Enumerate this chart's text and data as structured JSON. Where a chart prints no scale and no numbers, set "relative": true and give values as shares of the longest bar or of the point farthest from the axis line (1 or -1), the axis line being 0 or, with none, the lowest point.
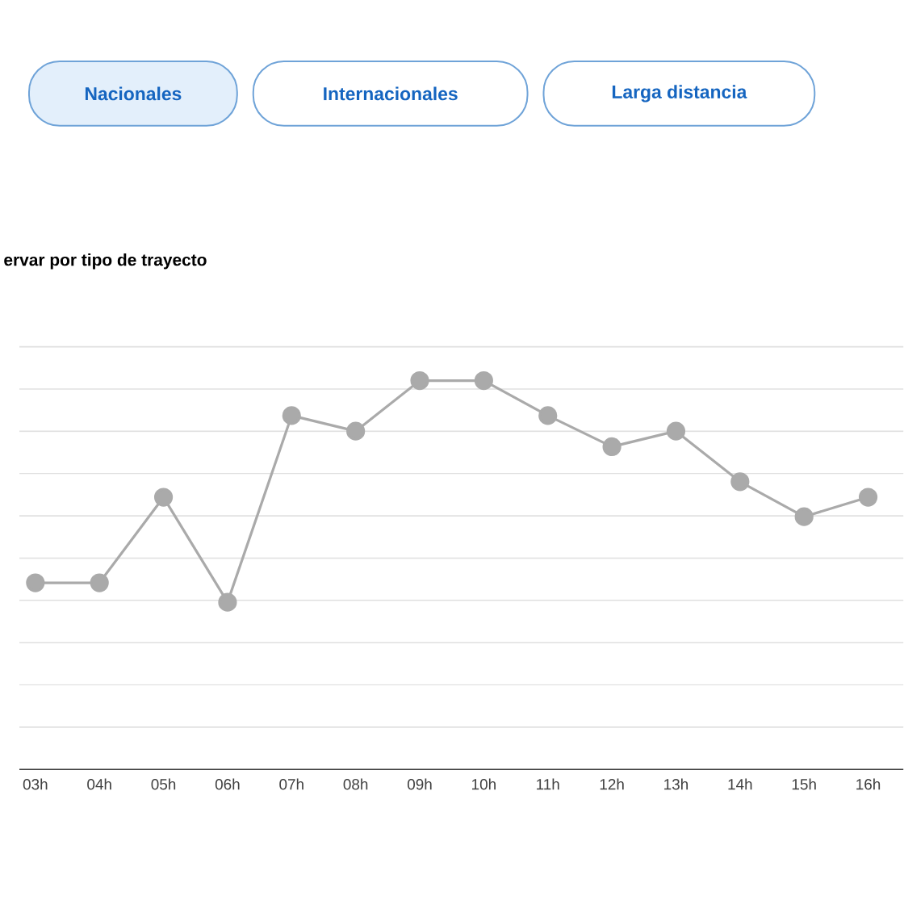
{
  "chart_data": {
    "type": "line",
    "title": "ervar por tipo de trayecto",
    "annotations": [
      "Nacionales",
      "Internacionales",
      "Larga distancia"
    ],
    "categories": [
      "03h",
      "04h",
      "05h",
      "06h",
      "07h",
      "08h",
      "09h",
      "10h",
      "11h",
      "12h",
      "13h",
      "14h",
      "15h",
      "16h"
    ],
    "values": [
      0.48,
      0.48,
      0.7,
      0.43,
      0.91,
      0.87,
      1,
      1,
      0.91,
      0.83,
      0.87,
      0.74,
      0.65,
      0.7
    ],
    "color": "#aaaaaa",
    "relative": true,
    "marker": "circle",
    "grid": "y"
  }
}
